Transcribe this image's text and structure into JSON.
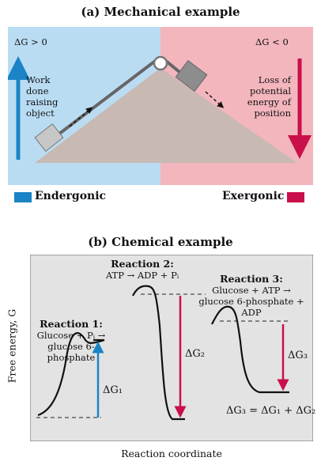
{
  "mechanical": {
    "title": "(a) Mechanical example",
    "left_dg": "ΔG > 0",
    "right_dg": "ΔG < 0",
    "left_caption": [
      "Work",
      "done",
      "raising",
      "object"
    ],
    "right_caption": [
      "Loss of",
      "potential",
      "energy of",
      "position"
    ],
    "left_legend": "Endergonic",
    "right_legend": "Exergonic",
    "colors": {
      "left_bg": "#b9dcf3",
      "right_bg": "#f3b6bd",
      "endergonic": "#1a84c6",
      "exergonic": "#c9104a",
      "slope": "#c8b9b3",
      "block": "#c7c7c7",
      "block_dark": "#8d8d8d"
    }
  },
  "chemical": {
    "title": "(b) Chemical example",
    "ylabel": "Free energy, G",
    "xlabel": "Reaction coordinate",
    "reaction1": {
      "title": "Reaction 1:",
      "line1": "Glucose + Pᵢ →",
      "line2": "glucose 6-phosphate",
      "dg": "ΔG₁"
    },
    "reaction2": {
      "title": "Reaction 2:",
      "line1": "ATP → ADP + Pᵢ",
      "dg": "ΔG₂"
    },
    "reaction3": {
      "title": "Reaction 3:",
      "line1": "Glucose + ATP →",
      "line2": "glucose 6-phosphate + ADP",
      "dg": "ΔG₃"
    },
    "sum": "ΔG₃ = ΔG₁ + ΔG₂",
    "colors": {
      "bg": "#e3e3e3",
      "up_arrow": "#1a84c6",
      "down_arrow": "#c9104a"
    }
  }
}
